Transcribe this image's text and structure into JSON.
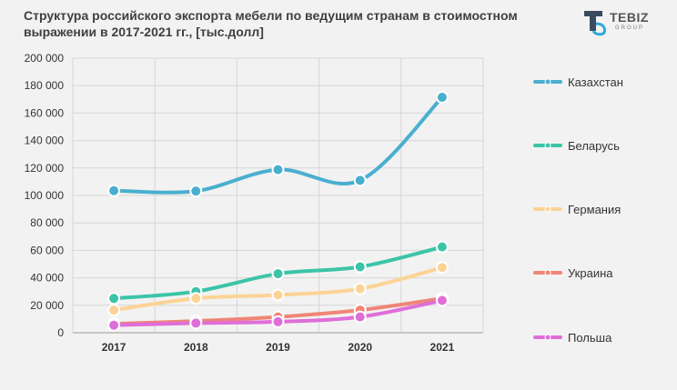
{
  "title": {
    "line1": "Структура российского экспорта мебели по ведущим странам в стоимостном",
    "line2": "выражении в 2017-2021 гг., [тыс.долл]"
  },
  "logo": {
    "main": "TEBIZ",
    "sub": "GROUP"
  },
  "chart_data": {
    "type": "line",
    "title": "Структура российского экспорта мебели по ведущим странам в стоимостном выражении в 2017-2021 гг., [тыс.долл]",
    "x": [
      "2017",
      "2018",
      "2019",
      "2020",
      "2021"
    ],
    "ylim": [
      0,
      200000
    ],
    "yticks": [
      "0",
      "20 000",
      "40 000",
      "60 000",
      "80 000",
      "100 000",
      "120 000",
      "140 000",
      "160 000",
      "180 000",
      "200 000"
    ],
    "grid": true,
    "legend_position": "right",
    "series": [
      {
        "name": "Казахстан",
        "color": "#4aafcf",
        "values": [
          103500,
          103200,
          118800,
          111000,
          171500
        ]
      },
      {
        "name": "Беларусь",
        "color": "#3cc4a8",
        "values": [
          25000,
          30000,
          43000,
          48000,
          62500
        ]
      },
      {
        "name": "Германия",
        "color": "#fcd396",
        "values": [
          16500,
          25000,
          27500,
          32000,
          47500
        ]
      },
      {
        "name": "Украина",
        "color": "#ef8576",
        "values": [
          6500,
          8500,
          11500,
          16500,
          25000
        ]
      },
      {
        "name": "Польша",
        "color": "#df6ed8",
        "values": [
          5500,
          7000,
          8000,
          11500,
          23500
        ]
      }
    ]
  }
}
